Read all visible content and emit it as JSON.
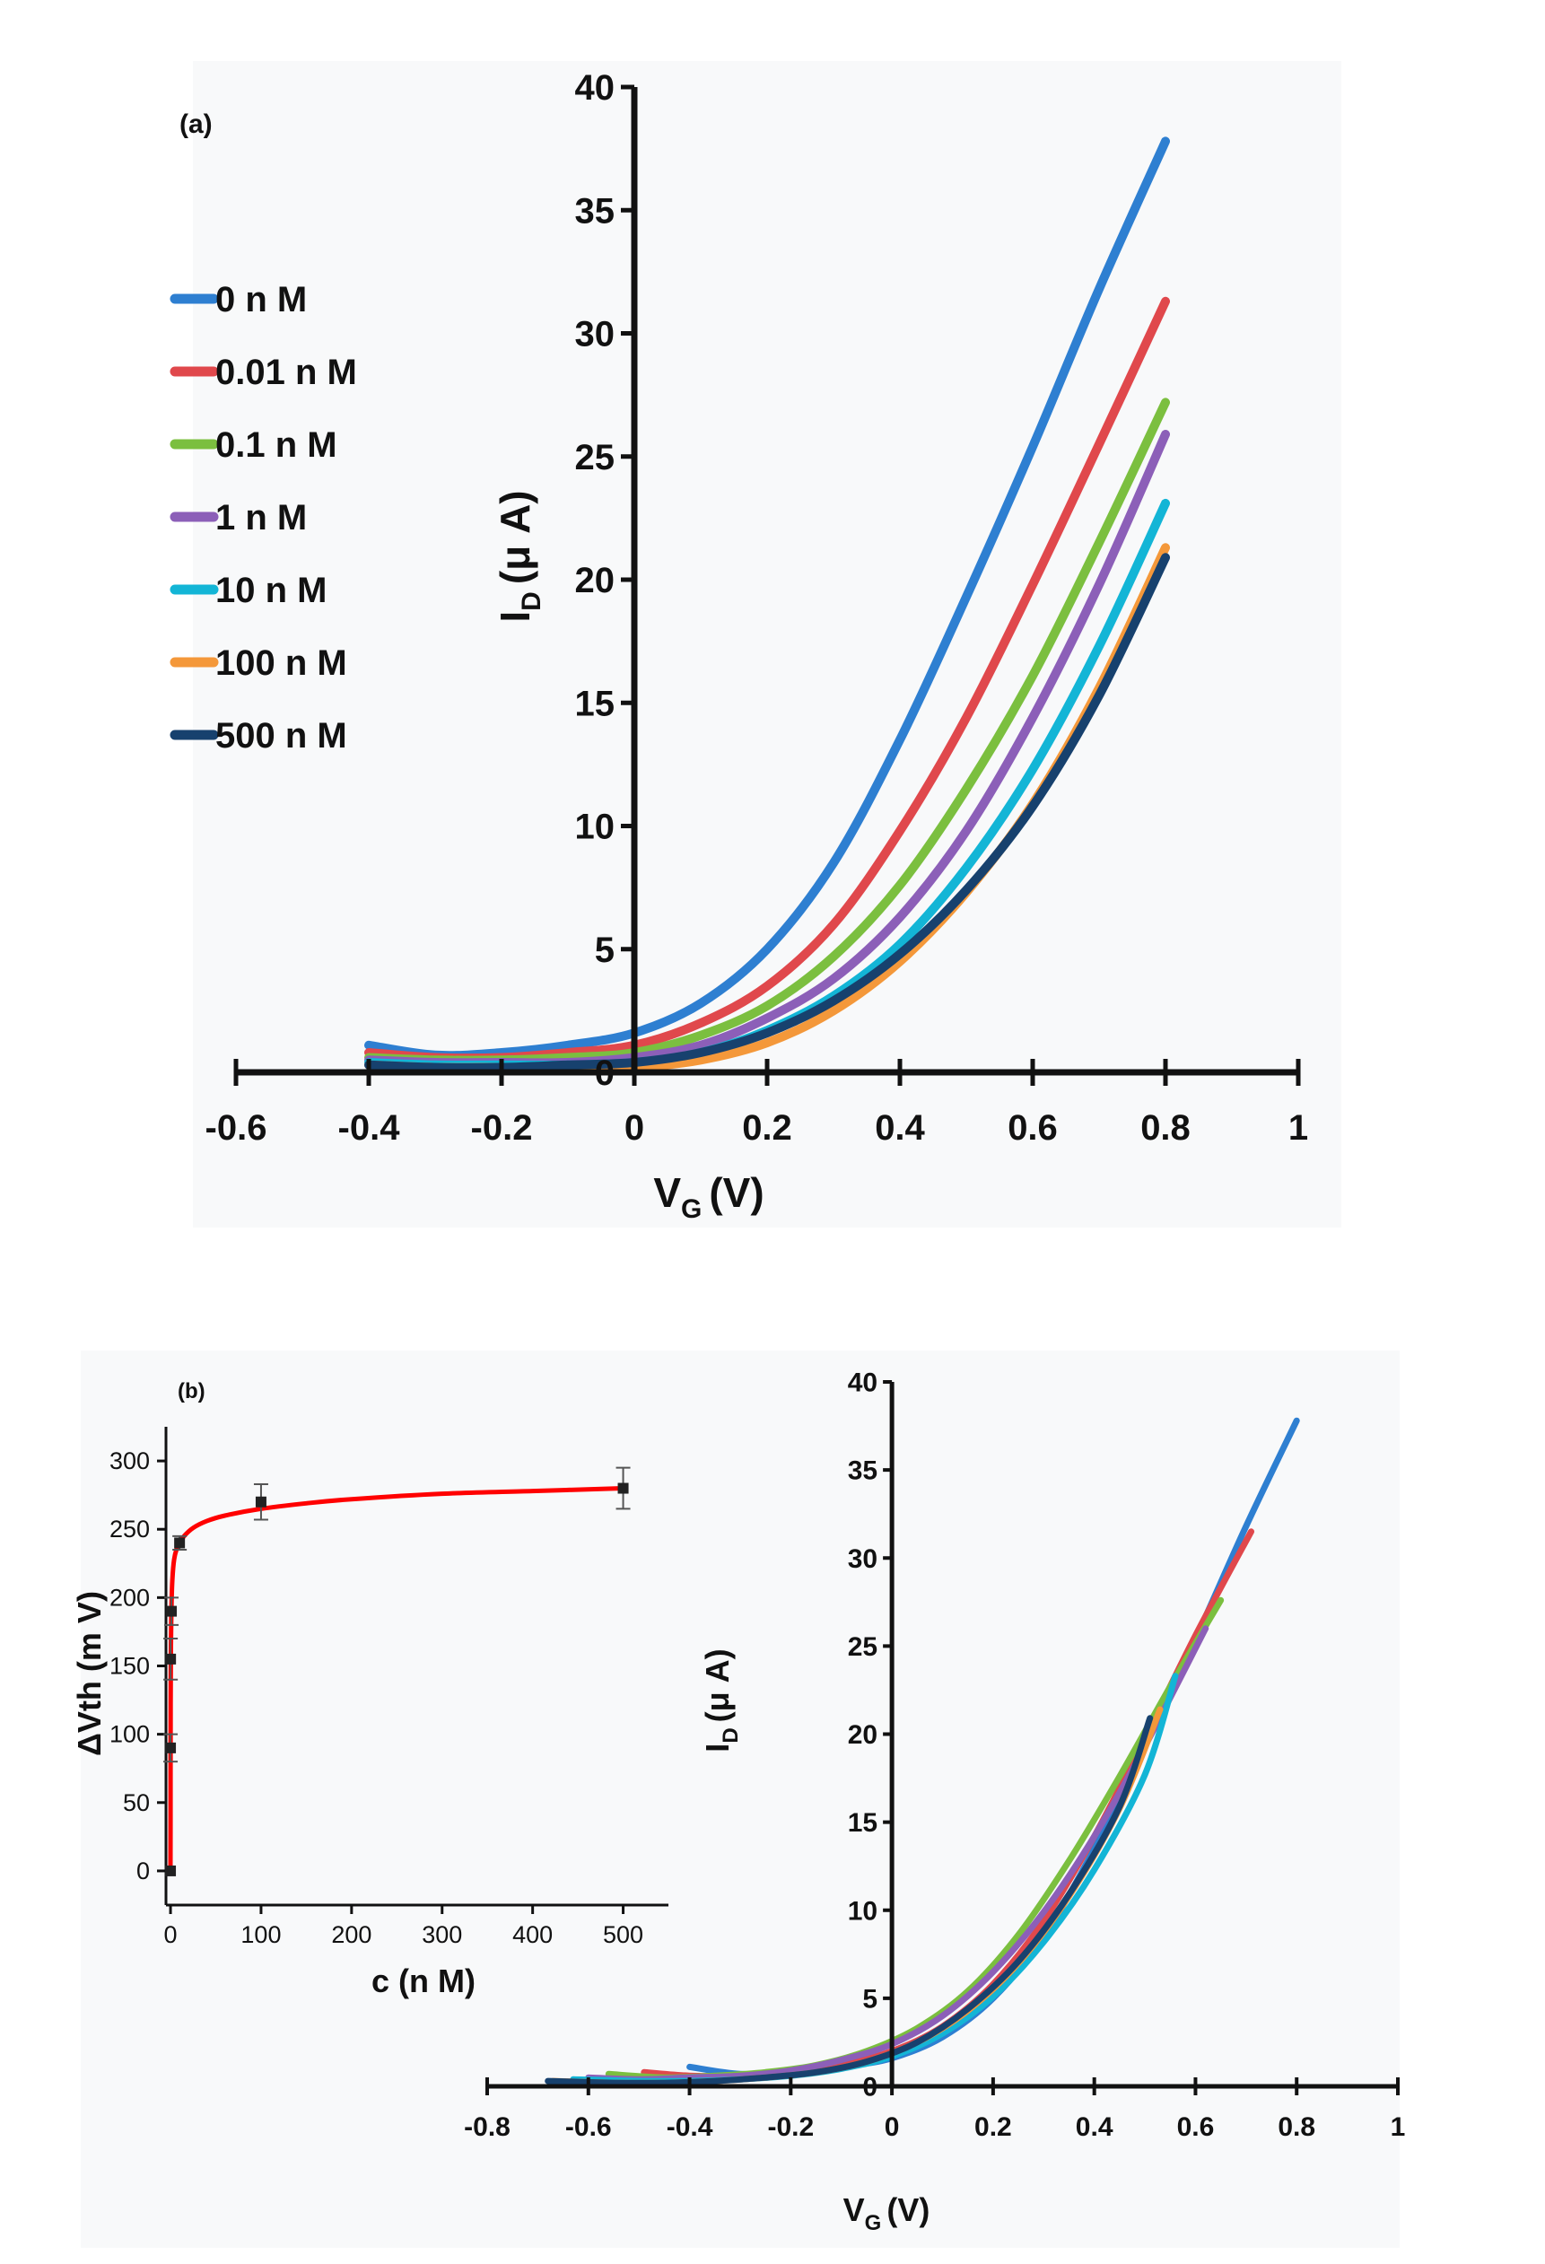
{
  "colors": {
    "panel_bg": "#f8f9fa",
    "axis": "#111111",
    "fit": "#ff0000",
    "series": [
      "#2e7fd1",
      "#e0484c",
      "#7bbf3f",
      "#8c5fb8",
      "#13b5d6",
      "#f4983a",
      "#17416e"
    ]
  },
  "chart_data": [
    {
      "id": "a",
      "type": "line",
      "panel_label": "(a)",
      "xlabel": "V",
      "xlabel_sub": "G",
      "xlabel_unit": "(V)",
      "ylabel": "I",
      "ylabel_sub": "D",
      "ylabel_unit": "(μ A)",
      "xlim": [
        -0.6,
        1.0
      ],
      "ylim": [
        0,
        40
      ],
      "x_ticks": [
        -0.6,
        -0.4,
        -0.2,
        0,
        0.2,
        0.4,
        0.6,
        0.8,
        1
      ],
      "x_tick_labels": [
        "-0.6",
        "-0.4",
        "-0.2",
        "0",
        "0.2",
        "0.4",
        "0.6",
        "0.8",
        "1"
      ],
      "y_ticks": [
        0,
        5,
        10,
        15,
        20,
        25,
        30,
        35,
        40
      ],
      "y_tick_labels": [
        "0",
        "5",
        "10",
        "15",
        "20",
        "25",
        "30",
        "35",
        "40"
      ],
      "legend": [
        "0 n M",
        "0.01 n M",
        "0.1 n M",
        "1 n M",
        "10 n M",
        "100 n M",
        "500 n M"
      ],
      "series": [
        {
          "name": "0 n M",
          "x": [
            -0.4,
            -0.3,
            -0.2,
            -0.1,
            0,
            0.1,
            0.2,
            0.3,
            0.4,
            0.5,
            0.6,
            0.7,
            0.8
          ],
          "values": [
            1.1,
            0.7,
            0.8,
            1.1,
            1.6,
            2.8,
            5.0,
            8.5,
            13.5,
            19.3,
            25.4,
            31.8,
            37.8
          ]
        },
        {
          "name": "0.01 n M",
          "x": [
            -0.4,
            -0.3,
            -0.2,
            -0.1,
            0,
            0.1,
            0.2,
            0.3,
            0.4,
            0.5,
            0.6,
            0.7,
            0.8
          ],
          "values": [
            0.8,
            0.6,
            0.6,
            0.8,
            1.1,
            2.0,
            3.5,
            6.0,
            9.8,
            14.4,
            19.8,
            25.5,
            31.3
          ]
        },
        {
          "name": "0.1 n M",
          "x": [
            -0.4,
            -0.3,
            -0.2,
            -0.1,
            0,
            0.1,
            0.2,
            0.3,
            0.4,
            0.5,
            0.6,
            0.7,
            0.8
          ],
          "values": [
            0.6,
            0.5,
            0.5,
            0.6,
            0.8,
            1.5,
            2.7,
            4.7,
            7.6,
            11.5,
            16.1,
            21.5,
            27.2
          ]
        },
        {
          "name": "1 n M",
          "x": [
            -0.4,
            -0.3,
            -0.2,
            -0.1,
            0,
            0.1,
            0.2,
            0.3,
            0.4,
            0.5,
            0.6,
            0.7,
            0.8
          ],
          "values": [
            0.5,
            0.4,
            0.4,
            0.4,
            0.6,
            1.1,
            2.2,
            3.8,
            6.3,
            9.8,
            14.4,
            19.8,
            25.9
          ]
        },
        {
          "name": "10 n M",
          "x": [
            -0.4,
            -0.3,
            -0.2,
            -0.1,
            0,
            0.1,
            0.2,
            0.3,
            0.4,
            0.5,
            0.6,
            0.7,
            0.8
          ],
          "values": [
            0.4,
            0.3,
            0.3,
            0.3,
            0.4,
            0.8,
            1.7,
            3.1,
            5.2,
            8.3,
            12.3,
            17.3,
            23.1
          ]
        },
        {
          "name": "100 n M",
          "x": [
            -0.4,
            -0.3,
            -0.2,
            -0.1,
            0,
            0.1,
            0.2,
            0.3,
            0.4,
            0.5,
            0.6,
            0.7,
            0.8
          ],
          "values": [
            0.3,
            0.2,
            0.2,
            0.2,
            0.2,
            0.5,
            1.2,
            2.5,
            4.5,
            7.3,
            10.9,
            15.6,
            21.3
          ]
        },
        {
          "name": "500 n M",
          "x": [
            -0.4,
            -0.3,
            -0.2,
            -0.1,
            0,
            0.1,
            0.2,
            0.3,
            0.4,
            0.5,
            0.6,
            0.7,
            0.8
          ],
          "values": [
            0.3,
            0.2,
            0.2,
            0.3,
            0.4,
            0.8,
            1.6,
            2.9,
            4.8,
            7.4,
            10.8,
            15.3,
            20.9
          ]
        }
      ]
    },
    {
      "id": "b-main",
      "type": "line",
      "xlabel": "V",
      "xlabel_sub": "G",
      "xlabel_unit": "(V)",
      "ylabel": "I",
      "ylabel_sub": "D",
      "ylabel_unit": "(μ A)",
      "xlim": [
        -0.8,
        1.0
      ],
      "ylim": [
        0,
        40
      ],
      "x_ticks": [
        -0.8,
        -0.6,
        -0.4,
        -0.2,
        0,
        0.2,
        0.4,
        0.6,
        0.8,
        1
      ],
      "x_tick_labels": [
        "-0.8",
        "-0.6",
        "-0.4",
        "-0.2",
        "0",
        "0.2",
        "0.4",
        "0.6",
        "0.8",
        "1"
      ],
      "y_ticks": [
        0,
        5,
        10,
        15,
        20,
        25,
        30,
        35,
        40
      ],
      "y_tick_labels": [
        "0",
        "5",
        "10",
        "15",
        "20",
        "25",
        "30",
        "35",
        "40"
      ],
      "series": [
        {
          "name": "0 n M",
          "x": [
            -0.4,
            -0.3,
            -0.2,
            -0.1,
            0,
            0.1,
            0.2,
            0.3,
            0.4,
            0.5,
            0.6,
            0.7,
            0.8
          ],
          "values": [
            1.1,
            0.7,
            0.8,
            1.1,
            1.6,
            2.8,
            5.0,
            8.5,
            13.5,
            19.3,
            25.4,
            31.8,
            37.8
          ]
        },
        {
          "name": "0.01 n M",
          "x": [
            -0.49,
            -0.4,
            -0.3,
            -0.2,
            -0.1,
            0,
            0.1,
            0.2,
            0.3,
            0.4,
            0.5,
            0.6,
            0.71
          ],
          "values": [
            0.8,
            0.6,
            0.6,
            0.8,
            1.2,
            2.0,
            3.4,
            5.8,
            9.4,
            14.2,
            19.8,
            25.6,
            31.5
          ]
        },
        {
          "name": "0.1 n M",
          "x": [
            -0.56,
            -0.45,
            -0.35,
            -0.25,
            -0.15,
            -0.05,
            0.05,
            0.15,
            0.25,
            0.35,
            0.45,
            0.55,
            0.65
          ],
          "values": [
            0.7,
            0.5,
            0.6,
            0.8,
            1.2,
            2.0,
            3.3,
            5.4,
            8.6,
            12.8,
            17.6,
            22.7,
            27.6
          ]
        },
        {
          "name": "1 n M",
          "x": [
            -0.6,
            -0.5,
            -0.4,
            -0.3,
            -0.2,
            -0.1,
            0,
            0.1,
            0.2,
            0.3,
            0.4,
            0.5,
            0.62
          ],
          "values": [
            0.5,
            0.4,
            0.5,
            0.6,
            0.9,
            1.5,
            2.4,
            4.0,
            6.5,
            9.9,
            14.2,
            19.3,
            26.0
          ]
        },
        {
          "name": "10 n M",
          "x": [
            -0.63,
            -0.5,
            -0.4,
            -0.3,
            -0.2,
            -0.1,
            0,
            0.1,
            0.2,
            0.3,
            0.4,
            0.5,
            0.56
          ],
          "values": [
            0.4,
            0.3,
            0.3,
            0.4,
            0.6,
            1.0,
            1.7,
            3.0,
            5.1,
            8.2,
            12.3,
            17.7,
            23.3
          ]
        },
        {
          "name": "100 n M",
          "x": [
            -0.67,
            -0.55,
            -0.45,
            -0.35,
            -0.25,
            -0.15,
            -0.05,
            0.05,
            0.15,
            0.25,
            0.35,
            0.45,
            0.53
          ],
          "values": [
            0.3,
            0.2,
            0.2,
            0.3,
            0.5,
            0.8,
            1.4,
            2.5,
            4.3,
            7.0,
            10.8,
            15.8,
            21.4
          ]
        },
        {
          "name": "500 n M",
          "x": [
            -0.68,
            -0.55,
            -0.45,
            -0.35,
            -0.25,
            -0.15,
            -0.05,
            0.05,
            0.15,
            0.25,
            0.35,
            0.45,
            0.51
          ],
          "values": [
            0.3,
            0.2,
            0.2,
            0.3,
            0.5,
            0.8,
            1.4,
            2.5,
            4.4,
            7.1,
            10.9,
            15.9,
            20.9
          ]
        }
      ]
    },
    {
      "id": "b-inset",
      "type": "scatter",
      "panel_label": "(b)",
      "xlabel": "c (n M)",
      "ylabel": "ΔVth (m V)",
      "xlim": [
        -5,
        550
      ],
      "ylim": [
        -25,
        325
      ],
      "x_ticks": [
        0,
        100,
        200,
        300,
        400,
        500
      ],
      "x_tick_labels": [
        "0",
        "100",
        "200",
        "300",
        "400",
        "500"
      ],
      "y_ticks": [
        0,
        50,
        100,
        150,
        200,
        250,
        300
      ],
      "y_tick_labels": [
        "0",
        "50",
        "100",
        "150",
        "200",
        "250",
        "300"
      ],
      "points": {
        "x": [
          0,
          0.01,
          0.1,
          1,
          10,
          100,
          500
        ],
        "y": [
          0,
          90,
          155,
          190,
          240,
          270,
          280
        ],
        "error": [
          0,
          10,
          15,
          10,
          5,
          13,
          15
        ]
      },
      "fit": {
        "name": "fit",
        "x": [
          0,
          0.05,
          0.2,
          0.5,
          1,
          2,
          4,
          7,
          10,
          15,
          25,
          40,
          60,
          100,
          150,
          200,
          300,
          400,
          500
        ],
        "values": [
          0,
          68,
          122,
          165,
          192,
          213,
          228,
          236,
          240,
          245,
          251,
          256,
          260,
          265,
          269,
          272,
          276,
          278,
          280
        ]
      }
    }
  ]
}
